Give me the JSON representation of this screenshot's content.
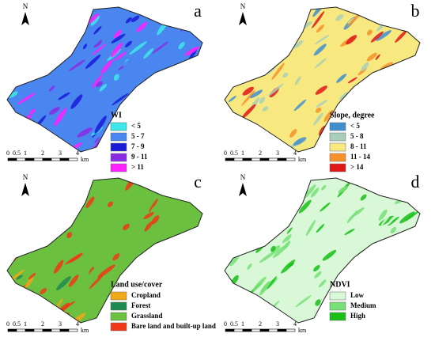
{
  "panels": [
    {
      "letter": "a",
      "north": "N",
      "legend_title": "WI",
      "legend": [
        {
          "label": "< 5",
          "color": "#3ee8e8"
        },
        {
          "label": "5 - 7",
          "color": "#4a86f0"
        },
        {
          "label": "7 - 9",
          "color": "#1a1ad8"
        },
        {
          "label": "9 - 11",
          "color": "#8a2be2"
        },
        {
          "label": "> 11",
          "color": "#ff20ff"
        }
      ],
      "scale_labels": [
        "0",
        "0.5",
        "1",
        "2",
        "3",
        "4"
      ],
      "scale_unit": "km"
    },
    {
      "letter": "b",
      "north": "N",
      "legend_title": "Slope, degree",
      "legend": [
        {
          "label": "< 5",
          "color": "#3f8fd0"
        },
        {
          "label": "5 - 8",
          "color": "#a8d0b8"
        },
        {
          "label": "8 - 11",
          "color": "#f8e880"
        },
        {
          "label": "11 - 14",
          "color": "#f8902c"
        },
        {
          "label": "> 14",
          "color": "#e01818"
        }
      ],
      "scale_labels": [
        "0",
        "0.5",
        "1",
        "2",
        "3",
        "4"
      ],
      "scale_unit": "km"
    },
    {
      "letter": "c",
      "north": "N",
      "legend_title": "Land use/cover",
      "legend": [
        {
          "label": "Cropland",
          "color": "#f0a818"
        },
        {
          "label": "Forest",
          "color": "#1e8a50"
        },
        {
          "label": "Grassland",
          "color": "#6cc040"
        },
        {
          "label": "Bare land and built-up land",
          "color": "#f03818"
        }
      ],
      "scale_labels": [
        "0",
        "0.5",
        "1",
        "2",
        "3",
        "4"
      ],
      "scale_unit": "km"
    },
    {
      "letter": "d",
      "north": "N",
      "legend_title": "NDVI",
      "legend": [
        {
          "label": "Low",
          "color": "#d8f8d8"
        },
        {
          "label": "Medium",
          "color": "#78e078"
        },
        {
          "label": "High",
          "color": "#18c018"
        }
      ],
      "scale_labels": [
        "0",
        "0.5",
        "1",
        "2",
        "3",
        "4"
      ],
      "scale_unit": "km"
    }
  ]
}
